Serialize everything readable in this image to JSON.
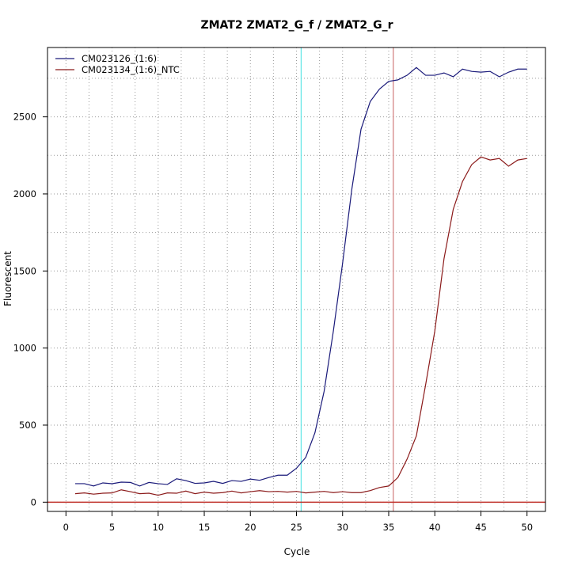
{
  "chart_data": {
    "type": "line",
    "title": "ZMAT2  ZMAT2_G_f / ZMAT2_G_r",
    "xlabel": "Cycle",
    "ylabel": "Fluorescent",
    "xlim": [
      -2,
      52
    ],
    "ylim": [
      -60,
      2950
    ],
    "x_ticks": [
      0,
      5,
      10,
      15,
      20,
      25,
      30,
      35,
      40,
      45,
      50
    ],
    "y_ticks": [
      0,
      500,
      1000,
      1500,
      2000,
      2500
    ],
    "x_minor_grid": [
      2.5,
      7.5,
      12.5,
      17.5,
      22.5,
      27.5,
      32.5,
      37.5,
      42.5,
      47.5
    ],
    "y_minor_grid": [
      250,
      750,
      1250,
      1750,
      2250,
      2750
    ],
    "grid": true,
    "legend_position": "top-left",
    "threshold_y": 0,
    "threshold_color": "#c0302a",
    "vlines": [
      {
        "x": 25.5,
        "color": "#40e0e0"
      },
      {
        "x": 35.5,
        "color": "#c86060"
      }
    ],
    "x": [
      1,
      2,
      3,
      4,
      5,
      6,
      7,
      8,
      9,
      10,
      11,
      12,
      13,
      14,
      15,
      16,
      17,
      18,
      19,
      20,
      21,
      22,
      23,
      24,
      25,
      26,
      27,
      28,
      29,
      30,
      31,
      32,
      33,
      34,
      35,
      36,
      37,
      38,
      39,
      40,
      41,
      42,
      43,
      44,
      45,
      46,
      47,
      48,
      49,
      50
    ],
    "series": [
      {
        "name": "CM023126_(1:6)",
        "color": "#1a1a7a",
        "values": [
          120,
          120,
          105,
          125,
          120,
          130,
          128,
          105,
          128,
          120,
          115,
          152,
          140,
          122,
          125,
          135,
          122,
          140,
          135,
          150,
          142,
          160,
          175,
          175,
          220,
          290,
          450,
          720,
          1110,
          1550,
          2030,
          2420,
          2600,
          2680,
          2730,
          2740,
          2770,
          2820,
          2770,
          2770,
          2785,
          2760,
          2810,
          2795,
          2790,
          2795,
          2760,
          2790,
          2810,
          2810
        ]
      },
      {
        "name": "CM023134_(1:6)_NTC",
        "color": "#8b1a1a",
        "values": [
          55,
          60,
          52,
          58,
          60,
          80,
          68,
          55,
          58,
          45,
          60,
          58,
          72,
          55,
          65,
          58,
          62,
          72,
          60,
          68,
          75,
          68,
          70,
          65,
          70,
          60,
          65,
          70,
          62,
          68,
          62,
          62,
          75,
          95,
          105,
          160,
          280,
          430,
          760,
          1110,
          1580,
          1900,
          2080,
          2190,
          2240,
          2220,
          2230,
          2180,
          2220,
          2230
        ]
      }
    ]
  }
}
